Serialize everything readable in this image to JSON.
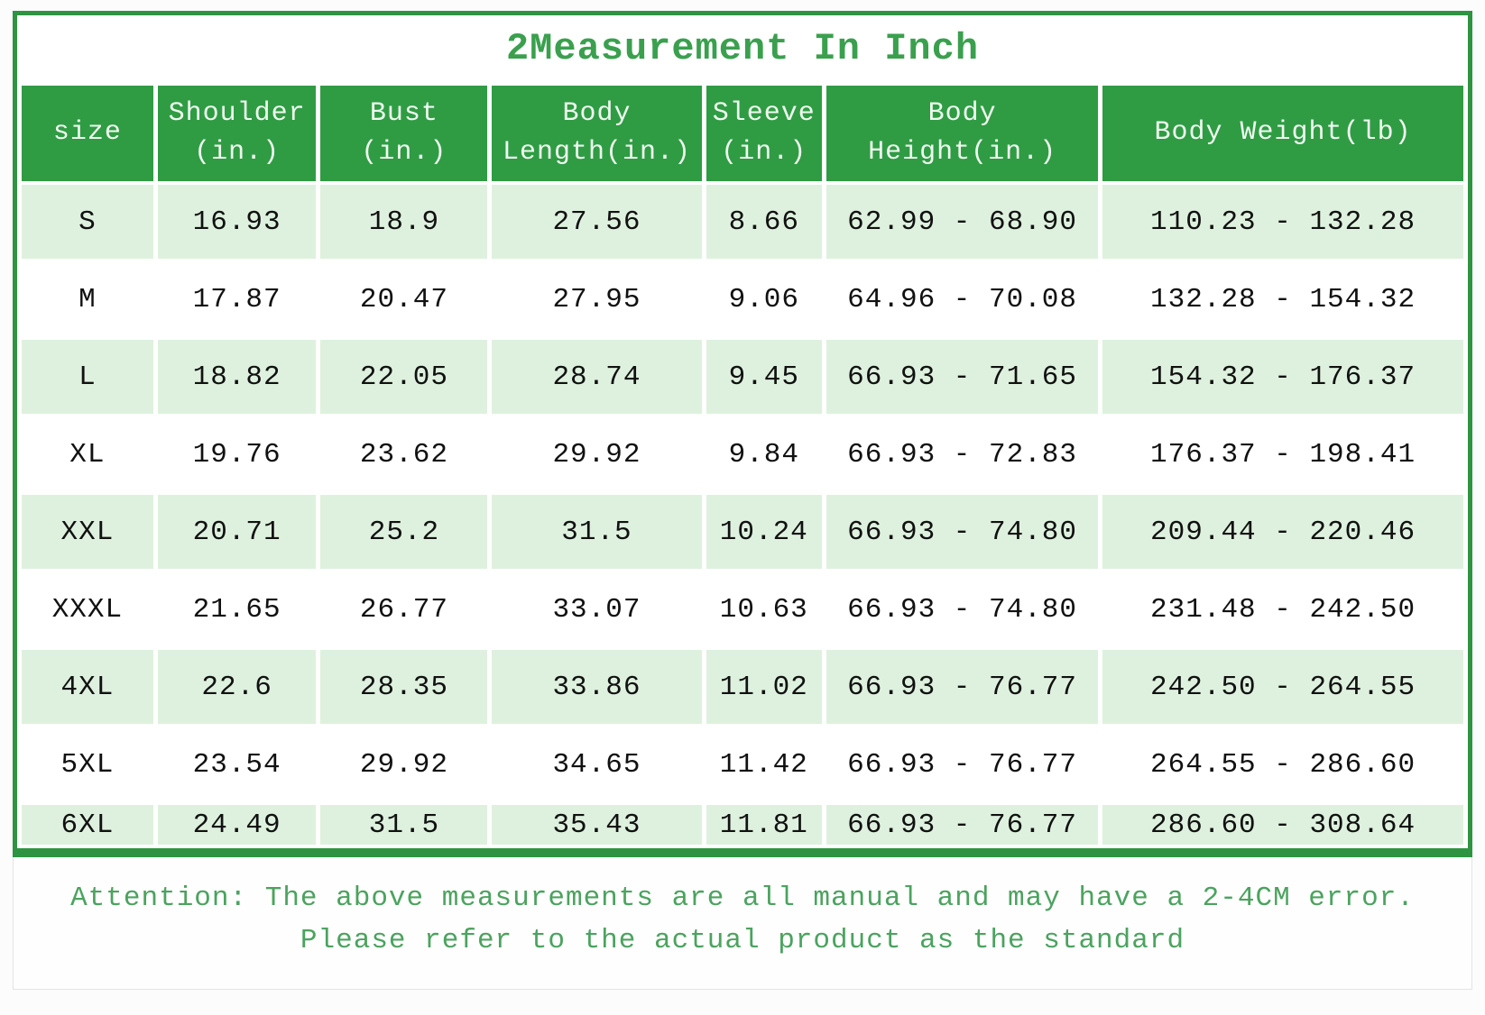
{
  "title": "2Measurement In Inch",
  "table": {
    "headers": [
      "size",
      "Shoulder\n(in.)",
      "Bust\n(in.)",
      "Body\nLength(in.)",
      "Sleeve\n(in.)",
      "Body\nHeight(in.)",
      "Body Weight(lb)"
    ],
    "rows": [
      [
        "S",
        "16.93",
        "18.9",
        "27.56",
        "8.66",
        "62.99 - 68.90",
        "110.23 - 132.28"
      ],
      [
        "M",
        "17.87",
        "20.47",
        "27.95",
        "9.06",
        "64.96 - 70.08",
        "132.28 - 154.32"
      ],
      [
        "L",
        "18.82",
        "22.05",
        "28.74",
        "9.45",
        "66.93 - 71.65",
        "154.32 - 176.37"
      ],
      [
        "XL",
        "19.76",
        "23.62",
        "29.92",
        "9.84",
        "66.93 - 72.83",
        "176.37 - 198.41"
      ],
      [
        "XXL",
        "20.71",
        "25.2",
        "31.5",
        "10.24",
        "66.93 - 74.80",
        "209.44 - 220.46"
      ],
      [
        "XXXL",
        "21.65",
        "26.77",
        "33.07",
        "10.63",
        "66.93 - 74.80",
        "231.48 - 242.50"
      ],
      [
        "4XL",
        "22.6",
        "28.35",
        "33.86",
        "11.02",
        "66.93 - 76.77",
        "242.50 - 264.55"
      ],
      [
        "5XL",
        "23.54",
        "29.92",
        "34.65",
        "11.42",
        "66.93 - 76.77",
        "264.55 - 286.60"
      ],
      [
        "6XL",
        "24.49",
        "31.5",
        "35.43",
        "11.81",
        "66.93 - 76.77",
        "286.60 - 308.64"
      ]
    ]
  },
  "attention": {
    "line1": "Attention: The above measurements are all manual and may have a 2-4CM error.",
    "line2": "Please refer to the actual product as the standard"
  },
  "colors": {
    "header_green": "#2f9c44",
    "frame_green": "#2e9442",
    "row_light": "#def1de",
    "title_green": "#3aa04e",
    "attention_green": "#4ba35f"
  }
}
